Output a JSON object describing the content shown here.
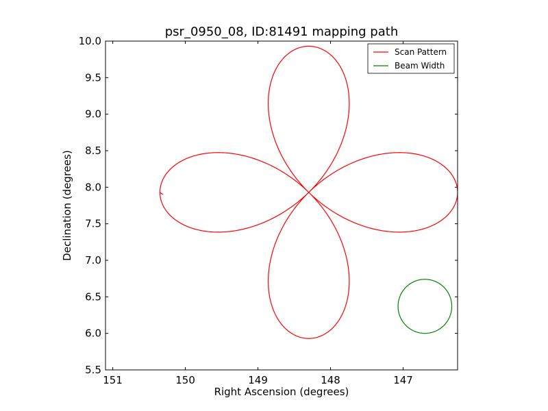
{
  "chart_data": {
    "type": "line",
    "title": "psr_0950_08, ID:81491 mapping path",
    "xlabel": "Right Ascension (degrees)",
    "ylabel": "Declination (degrees)",
    "xlim": [
      151.1,
      146.25
    ],
    "ylim": [
      5.5,
      10.0
    ],
    "x_reversed": true,
    "xticks": [
      "151",
      "150",
      "149",
      "148",
      "147"
    ],
    "xtick_values": [
      151,
      150,
      149,
      148,
      147
    ],
    "yticks": [
      "5.5",
      "6.0",
      "6.5",
      "7.0",
      "7.5",
      "8.0",
      "8.5",
      "9.0",
      "9.5",
      "10.0"
    ],
    "ytick_values": [
      5.5,
      6.0,
      6.5,
      7.0,
      7.5,
      8.0,
      8.5,
      9.0,
      9.5,
      10.0
    ],
    "grid": false,
    "legend_position": "top-right",
    "series": [
      {
        "name": "Scan Pattern",
        "color": "#ff0000",
        "shape": "four-petal rose",
        "center": [
          148.3,
          7.93
        ],
        "petal_tips": [
          {
            "ra": 148.3,
            "dec": 9.93
          },
          {
            "ra": 146.25,
            "dec": 7.93
          },
          {
            "ra": 148.3,
            "dec": 5.93
          },
          {
            "ra": 150.35,
            "dec": 7.93
          }
        ],
        "start_point": [
          150.35,
          7.93
        ],
        "end_point": [
          150.31,
          7.9
        ]
      },
      {
        "name": "Beam Width",
        "color": "#008000",
        "shape": "circle",
        "center": [
          146.7,
          6.37
        ],
        "radius": 0.37
      }
    ]
  }
}
